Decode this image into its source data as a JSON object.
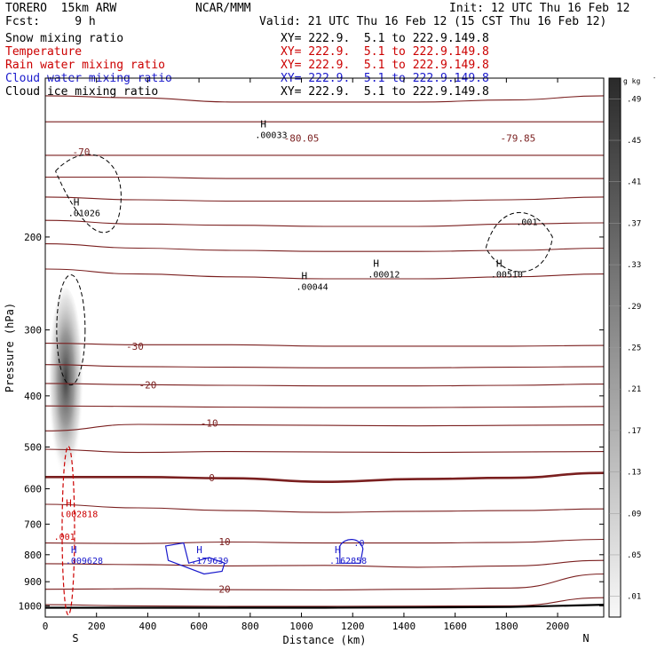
{
  "header": {
    "model": "TORERO  15km ARW",
    "center": "NCAR/MMM",
    "init": "Init: 12 UTC Thu 16 Feb 12",
    "fcst": "Fcst:     9 h",
    "valid": "Valid: 21 UTC Thu 16 Feb 12 (15 CST Thu 16 Feb 12)"
  },
  "fields": [
    {
      "name": "Snow mixing ratio",
      "xy": "XY= 222.9.  5.1 to 222.9.149.8",
      "color": "#000000"
    },
    {
      "name": "Temperature",
      "xy": "XY= 222.9.  5.1 to 222.9.149.8",
      "color": "#cc0000"
    },
    {
      "name": "Rain water mixing ratio",
      "xy": "XY= 222.9.  5.1 to 222.9.149.8",
      "color": "#cc0000"
    },
    {
      "name": "Cloud water mixing ratio",
      "xy": "XY= 222.9.  5.1 to 222.9.149.8",
      "color": "#1a1acc"
    },
    {
      "name": "Cloud ice mixing ratio",
      "xy": "XY= 222.9.  5.1 to 222.9.149.8",
      "color": "#000000"
    }
  ],
  "chart_data": {
    "type": "contour",
    "xlabel": "Distance (km)",
    "ylabel": "Pressure (hPa)",
    "xlim": [
      0,
      2180
    ],
    "ylim": [
      1050,
      100
    ],
    "y_scale": "log",
    "x_ticks": [
      0,
      200,
      400,
      600,
      800,
      1000,
      1200,
      1400,
      1600,
      1800,
      2000
    ],
    "y_ticks": [
      200,
      300,
      400,
      500,
      600,
      700,
      800,
      900,
      1000
    ],
    "endpoints": {
      "left": "S",
      "right": "N"
    },
    "colorbar": {
      "unit": "g kg",
      "unit_exp": "-1",
      "levels": [
        ".01",
        ".05",
        ".09",
        ".13",
        ".17",
        ".21",
        ".25",
        ".29",
        ".33",
        ".37",
        ".41",
        ".45",
        ".49"
      ]
    },
    "temperature_contours": [
      {
        "value": -80,
        "label": "-80.05",
        "label_x": 1000,
        "label_p": 130,
        "pressures": [
          108,
          109,
          111,
          111,
          111,
          110,
          108
        ]
      },
      {
        "value": -80,
        "label": "-79.85",
        "label_x": 1845,
        "label_p": 130,
        "pressures": [
          121,
          121,
          121,
          121,
          121,
          121,
          121
        ]
      },
      {
        "value": -70,
        "label": "-70",
        "label_x": 140,
        "label_p": 138,
        "pressures": [
          140,
          140,
          140,
          140,
          140,
          140,
          140
        ]
      },
      {
        "value": -60,
        "label": "",
        "pressures": [
          154,
          154,
          155,
          155,
          155,
          155,
          155
        ]
      },
      {
        "value": -50,
        "label": "",
        "pressures": [
          168,
          170,
          171,
          171,
          171,
          170,
          168
        ]
      },
      {
        "value": -45,
        "label": "",
        "pressures": [
          186,
          189,
          190,
          191,
          191,
          189,
          188
        ]
      },
      {
        "value": -40,
        "label": "",
        "pressures": [
          206,
          210,
          212,
          213,
          213,
          212,
          210
        ]
      },
      {
        "value": -35,
        "label": "",
        "pressures": [
          230,
          235,
          238,
          240,
          240,
          238,
          235
        ]
      },
      {
        "value": -30,
        "label": "-30",
        "label_x": 350,
        "label_p": 322,
        "pressures": [
          318,
          320,
          320,
          322,
          322,
          322,
          321
        ]
      },
      {
        "value": -25,
        "label": "",
        "pressures": [
          349,
          352,
          353,
          354,
          354,
          353,
          352
        ]
      },
      {
        "value": -20,
        "label": "-20",
        "label_x": 400,
        "label_p": 381,
        "pressures": [
          379,
          381,
          382,
          383,
          383,
          382,
          380
        ]
      },
      {
        "value": -15,
        "label": "",
        "pressures": [
          418,
          419,
          420,
          421,
          421,
          420,
          419
        ]
      },
      {
        "value": -10,
        "label": "-10",
        "label_x": 640,
        "label_p": 450,
        "pressures": [
          466,
          453,
          454,
          455,
          456,
          455,
          454
        ]
      },
      {
        "value": -5,
        "label": "",
        "pressures": [
          505,
          512,
          510,
          511,
          512,
          511,
          510
        ]
      },
      {
        "value": 0,
        "label": "0",
        "label_x": 650,
        "label_p": 572,
        "pressures": [
          570,
          570,
          573,
          582,
          575,
          572,
          560
        ],
        "bold": true
      },
      {
        "value": 5,
        "label": "",
        "pressures": [
          642,
          652,
          660,
          665,
          662,
          660,
          655
        ]
      },
      {
        "value": 10,
        "label": "10",
        "label_x": 700,
        "label_p": 755,
        "pressures": [
          760,
          762,
          757,
          760,
          760,
          758,
          748
        ]
      },
      {
        "value": 15,
        "label": "",
        "pressures": [
          832,
          835,
          840,
          838,
          845,
          840,
          820
        ]
      },
      {
        "value": 20,
        "label": "20",
        "label_x": 700,
        "label_p": 930,
        "pressures": [
          930,
          928,
          932,
          933,
          930,
          925,
          870
        ]
      },
      {
        "value": 25,
        "label": "",
        "pressures": [
          995,
          1000,
          1002,
          1002,
          1001,
          1000,
          965
        ]
      }
    ],
    "cloud_ice_maxima": [
      {
        "label": ".01026",
        "x": 110,
        "p": 180
      },
      {
        "label": ".00033",
        "x": 840,
        "p": 128
      },
      {
        "label": ".00044",
        "x": 1000,
        "p": 248
      },
      {
        "label": ".00012",
        "x": 1280,
        "p": 235
      },
      {
        "label": ".00510",
        "x": 1760,
        "p": 235
      }
    ],
    "cloud_ice_contour_labels": [
      {
        "label": ".001",
        "x": 1880,
        "p": 190
      }
    ],
    "rain_maxima": [
      {
        "label": ".002818",
        "x": 80,
        "p": 668
      }
    ],
    "rain_contour_labels": [
      {
        "label": ".001",
        "x": 75,
        "p": 750
      }
    ],
    "cloud_water_maxima": [
      {
        "label": ".009628",
        "x": 100,
        "p": 820
      },
      {
        "label": ".179639",
        "x": 590,
        "p": 820
      },
      {
        "label": ".162858",
        "x": 1130,
        "p": 820
      }
    ],
    "cloud_water_contour_labels": [
      {
        "label": ".0",
        "x": 1225,
        "p": 770
      }
    ],
    "snow_maximum_region": {
      "x_range": [
        10,
        150
      ],
      "p_range": [
        250,
        600
      ],
      "peak_x": 80,
      "peak_p": 340,
      "peak_value": 0.49
    },
    "terrain_pressure": [
      1008,
      1008,
      1008,
      1008,
      1007,
      1005,
      995
    ]
  }
}
